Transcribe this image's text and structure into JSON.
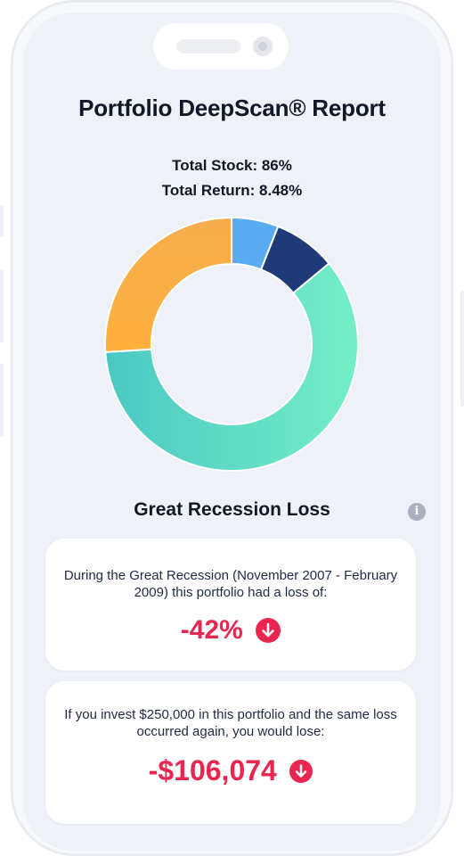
{
  "report": {
    "title": "Portfolio DeepScan® Report",
    "total_stock": "Total Stock: 86%",
    "total_return": "Total Return: 8.48%"
  },
  "chart_data": {
    "type": "pie",
    "donut": true,
    "slices": [
      {
        "value": 6,
        "color": "#5aacf0"
      },
      {
        "value": 8,
        "color": "#1f3a78"
      },
      {
        "value": 60,
        "color": "#6be0c0"
      },
      {
        "value": 26,
        "color": "#fbae3f"
      }
    ],
    "title": "",
    "legend": "none"
  },
  "recession": {
    "section_title": "Great Recession Loss",
    "info_icon": "info-icon",
    "loss_card": {
      "text": "During the Great Recession (November 2007 - February 2009) this portfolio had a loss of:",
      "value": "-42%"
    },
    "dollar_card": {
      "text": "If you invest $250,000 in this portfolio and the same loss occurred again, you would lose:",
      "value": "-$106,074"
    },
    "accent_color": "#e8264f"
  }
}
